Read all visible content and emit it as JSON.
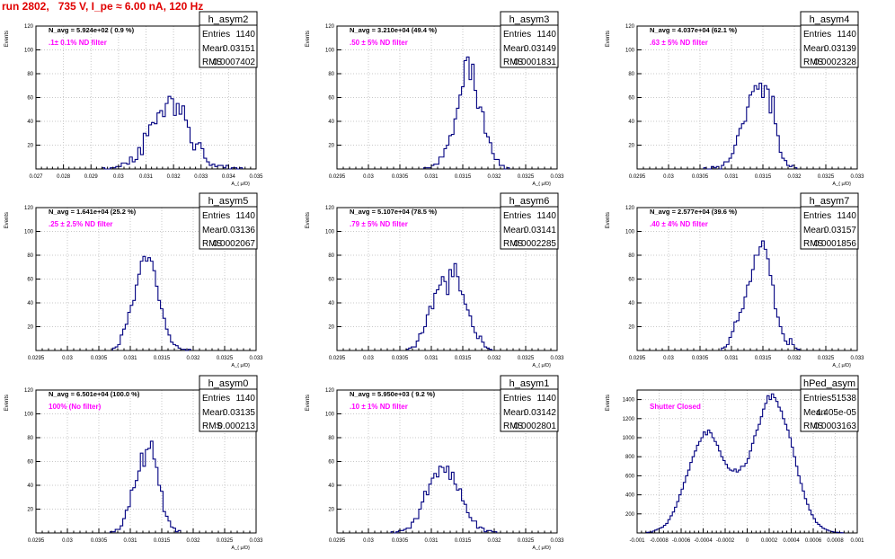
{
  "header": {
    "run_title": "run 2802,   735 V, I_pe ≈ 6.00 nA, 120 Hz"
  },
  "colors": {
    "title": "#e00000",
    "filter_label": "#ff00ff",
    "histogram": "#000080",
    "grid": "#c8c8c8"
  },
  "chart_data": [
    {
      "type": "bar",
      "name": "h_asym2",
      "stats": {
        "entries_label": "Entries",
        "entries": "1140",
        "mean_label": "Mean",
        "mean": "0.03151",
        "rms_label": "RMS",
        "rms": "0.0007402"
      },
      "navg": "N_avg = 5.924e+02 ( 0.9 %)",
      "filter": ".1± 0.1% ND filter",
      "ylabel": "Events",
      "xlabel": "A_{ μ/D}",
      "xlim": [
        0.027,
        0.035
      ],
      "ylim": [
        0,
        120
      ],
      "grid": true,
      "xticks": [
        0.027,
        0.028,
        0.029,
        0.03,
        0.031,
        0.032,
        0.033,
        0.034,
        0.035
      ],
      "xtick_labels": [
        "0.027",
        "0.028",
        "0.029",
        "0.03",
        "0.031",
        "0.032",
        "0.033",
        "0.034",
        "0.035"
      ],
      "yticks": [
        20,
        40,
        60,
        80,
        100,
        120
      ],
      "ytick_labels": [
        "20",
        "40",
        "60",
        "80",
        "100",
        "120"
      ],
      "bin_low": 0.0294,
      "bin_width": 0.0001,
      "values": [
        1,
        0,
        0,
        1,
        1,
        2,
        2,
        5,
        5,
        4,
        10,
        6,
        8,
        18,
        12,
        30,
        28,
        37,
        39,
        38,
        47,
        49,
        44,
        55,
        61,
        59,
        45,
        55,
        46,
        53,
        41,
        35,
        22,
        16,
        21,
        22,
        17,
        9,
        6,
        3,
        4,
        2,
        3,
        3,
        1,
        3,
        0,
        1,
        1,
        0,
        1
      ]
    },
    {
      "type": "bar",
      "name": "h_asym3",
      "stats": {
        "entries_label": "Entries",
        "entries": "1140",
        "mean_label": "Mean",
        "mean": "0.03149",
        "rms_label": "RMS",
        "rms": "0.0001831"
      },
      "navg": "N_avg = 3.210e+04 (49.4 %)",
      "filter": ".50 ± 5% ND filter",
      "ylabel": "Events",
      "xlabel": "A_{ μ/D}",
      "xlim": [
        0.0295,
        0.033
      ],
      "ylim": [
        0,
        120
      ],
      "grid": true,
      "xticks": [
        0.0295,
        0.03,
        0.0305,
        0.031,
        0.0315,
        0.032,
        0.0325,
        0.033
      ],
      "xtick_labels": [
        "0.0295",
        "0.03",
        "0.0305",
        "0.031",
        "0.0315",
        "0.032",
        "0.0325",
        "0.033"
      ],
      "yticks": [
        20,
        40,
        60,
        80,
        100,
        120
      ],
      "ytick_labels": [
        "20",
        "40",
        "60",
        "80",
        "100",
        "120"
      ],
      "bin_low": 0.03088,
      "bin_width": 4e-05,
      "values": [
        1,
        1,
        1,
        3,
        4,
        4,
        10,
        10,
        17,
        20,
        28,
        29,
        42,
        51,
        62,
        69,
        91,
        94,
        75,
        88,
        66,
        51,
        52,
        48,
        30,
        27,
        22,
        13,
        8,
        8,
        3,
        3,
        0,
        1
      ]
    },
    {
      "type": "bar",
      "name": "h_asym4",
      "stats": {
        "entries_label": "Entries",
        "entries": "1140",
        "mean_label": "Mean",
        "mean": "0.03139",
        "rms_label": "RMS",
        "rms": "0.0002328"
      },
      "navg": "N_avg = 4.037e+04 (62.1 %)",
      "filter": ".63 ± 5% ND filter",
      "ylabel": "Events",
      "xlabel": "A_{ μ/D}",
      "xlim": [
        0.0295,
        0.033
      ],
      "ylim": [
        0,
        120
      ],
      "grid": true,
      "xticks": [
        0.0295,
        0.03,
        0.0305,
        0.031,
        0.0315,
        0.032,
        0.0325,
        0.033
      ],
      "xtick_labels": [
        "0.0295",
        "0.03",
        "0.0305",
        "0.031",
        "0.0315",
        "0.032",
        "0.0325",
        "0.033"
      ],
      "yticks": [
        20,
        40,
        60,
        80,
        100,
        120
      ],
      "ytick_labels": [
        "20",
        "40",
        "60",
        "80",
        "100",
        "120"
      ],
      "bin_low": 0.03056,
      "bin_width": 4e-05,
      "values": [
        1,
        0,
        0,
        2,
        1,
        2,
        0,
        3,
        6,
        6,
        9,
        13,
        20,
        28,
        34,
        38,
        40,
        52,
        62,
        65,
        70,
        67,
        72,
        60,
        70,
        67,
        47,
        61,
        38,
        28,
        14,
        9,
        7,
        3,
        2,
        3,
        1
      ]
    },
    {
      "type": "bar",
      "name": "h_asym5",
      "stats": {
        "entries_label": "Entries",
        "entries": "1140",
        "mean_label": "Mean",
        "mean": "0.03136",
        "rms_label": "RMS",
        "rms": "0.0002067"
      },
      "navg": "N_avg = 1.641e+04 (25.2 %)",
      "filter": ".25 ± 2.5% ND filter",
      "ylabel": "Events",
      "xlabel": "A_{ μ/D}",
      "xlim": [
        0.0295,
        0.033
      ],
      "ylim": [
        0,
        120
      ],
      "grid": true,
      "xticks": [
        0.0295,
        0.03,
        0.0305,
        0.031,
        0.0315,
        0.032,
        0.0325,
        0.033
      ],
      "xtick_labels": [
        "0.0295",
        "0.03",
        "0.0305",
        "0.031",
        "0.0315",
        "0.032",
        "0.0325",
        "0.033"
      ],
      "yticks": [
        20,
        40,
        60,
        80,
        100,
        120
      ],
      "ytick_labels": [
        "20",
        "40",
        "60",
        "80",
        "100",
        "120"
      ],
      "bin_low": 0.03072,
      "bin_width": 4e-05,
      "values": [
        2,
        3,
        5,
        13,
        18,
        22,
        32,
        38,
        42,
        55,
        64,
        75,
        79,
        75,
        78,
        75,
        67,
        54,
        42,
        35,
        27,
        18,
        13,
        7,
        5,
        4,
        2,
        1,
        1,
        0,
        1
      ]
    },
    {
      "type": "bar",
      "name": "h_asym6",
      "stats": {
        "entries_label": "Entries",
        "entries": "1140",
        "mean_label": "Mean",
        "mean": "0.03141",
        "rms_label": "RMS",
        "rms": "0.0002285"
      },
      "navg": "N_avg = 5.107e+04 (78.5 %)",
      "filter": ".79 ± 5% ND filter",
      "ylabel": "Events",
      "xlabel": "A_{ μ/D}",
      "xlim": [
        0.0295,
        0.033
      ],
      "ylim": [
        0,
        120
      ],
      "grid": true,
      "xticks": [
        0.0295,
        0.03,
        0.0305,
        0.031,
        0.0315,
        0.032,
        0.0325,
        0.033
      ],
      "xtick_labels": [
        "0.0295",
        "0.03",
        "0.0305",
        "0.031",
        "0.0315",
        "0.032",
        "0.0325",
        "0.033"
      ],
      "yticks": [
        20,
        40,
        60,
        80,
        100,
        120
      ],
      "ytick_labels": [
        "20",
        "40",
        "60",
        "80",
        "100",
        "120"
      ],
      "bin_low": 0.0306,
      "bin_width": 4e-05,
      "values": [
        1,
        2,
        3,
        3,
        8,
        14,
        15,
        20,
        30,
        37,
        35,
        48,
        51,
        55,
        62,
        58,
        47,
        68,
        62,
        73,
        62,
        50,
        47,
        39,
        34,
        29,
        20,
        15,
        10,
        12,
        7,
        3,
        2,
        1
      ]
    },
    {
      "type": "bar",
      "name": "h_asym7",
      "stats": {
        "entries_label": "Entries",
        "entries": "1140",
        "mean_label": "Mean",
        "mean": "0.03157",
        "rms_label": "RMS",
        "rms": "0.0001856"
      },
      "navg": "N_avg = 2.577e+04 (39.6 %)",
      "filter": ".40 ± 4% ND filter",
      "ylabel": "Events",
      "xlabel": "A_{ μ/D}",
      "xlim": [
        0.0295,
        0.033
      ],
      "ylim": [
        0,
        120
      ],
      "grid": true,
      "xticks": [
        0.0295,
        0.03,
        0.0305,
        0.031,
        0.0315,
        0.032,
        0.0325,
        0.033
      ],
      "xtick_labels": [
        "0.0295",
        "0.03",
        "0.0305",
        "0.031",
        "0.0315",
        "0.032",
        "0.0325",
        "0.033"
      ],
      "yticks": [
        20,
        40,
        60,
        80,
        100,
        120
      ],
      "ytick_labels": [
        "20",
        "40",
        "60",
        "80",
        "100",
        "120"
      ],
      "bin_low": 0.03084,
      "bin_width": 4e-05,
      "values": [
        2,
        3,
        5,
        11,
        16,
        24,
        25,
        32,
        35,
        45,
        55,
        58,
        68,
        80,
        80,
        87,
        92,
        85,
        77,
        63,
        55,
        35,
        28,
        20,
        14,
        8,
        5,
        10,
        5,
        2,
        1
      ]
    },
    {
      "type": "bar",
      "name": "h_asym0",
      "stats": {
        "entries_label": "Entries",
        "entries": "1140",
        "mean_label": "Mean",
        "mean": "0.03135",
        "rms_label": "RMS",
        "rms": "0.000213"
      },
      "navg": "N_avg = 6.501e+04 (100.0 %)",
      "filter": "100% (No filter)",
      "ylabel": "Events",
      "xlabel": "A_{ μ/D}",
      "xlim": [
        0.0295,
        0.033
      ],
      "ylim": [
        0,
        120
      ],
      "grid": true,
      "xticks": [
        0.0295,
        0.03,
        0.0305,
        0.031,
        0.0315,
        0.032,
        0.0325,
        0.033
      ],
      "xtick_labels": [
        "0.0295",
        "0.03",
        "0.0305",
        "0.031",
        "0.0315",
        "0.032",
        "0.0325",
        "0.033"
      ],
      "yticks": [
        20,
        40,
        60,
        80,
        100,
        120
      ],
      "ytick_labels": [
        "20",
        "40",
        "60",
        "80",
        "100",
        "120"
      ],
      "bin_low": 0.03068,
      "bin_width": 4e-05,
      "values": [
        1,
        1,
        3,
        3,
        6,
        12,
        19,
        22,
        36,
        38,
        44,
        52,
        67,
        56,
        70,
        71,
        77,
        62,
        55,
        40,
        35,
        18,
        14,
        10,
        5,
        4,
        1,
        2
      ]
    },
    {
      "type": "bar",
      "name": "h_asym1",
      "stats": {
        "entries_label": "Entries",
        "entries": "1140",
        "mean_label": "Mean",
        "mean": "0.03142",
        "rms_label": "RMS",
        "rms": "0.0002801"
      },
      "navg": "N_avg = 5.950e+03 ( 9.2 %)",
      "filter": ".10 ± 1% ND filter",
      "ylabel": "Events",
      "xlabel": "A_{ μ/D}",
      "xlim": [
        0.0295,
        0.033
      ],
      "ylim": [
        0,
        120
      ],
      "grid": true,
      "xticks": [
        0.0295,
        0.03,
        0.0305,
        0.031,
        0.0315,
        0.032,
        0.0325,
        0.033
      ],
      "xtick_labels": [
        "0.0295",
        "0.03",
        "0.0305",
        "0.031",
        "0.0315",
        "0.032",
        "0.0325",
        "0.033"
      ],
      "yticks": [
        20,
        40,
        60,
        80,
        100,
        120
      ],
      "ytick_labels": [
        "20",
        "40",
        "60",
        "80",
        "100",
        "120"
      ],
      "bin_low": 0.03036,
      "bin_width": 4e-05,
      "values": [
        1,
        0,
        1,
        2,
        2,
        3,
        4,
        4,
        9,
        12,
        12,
        20,
        26,
        35,
        32,
        41,
        46,
        50,
        47,
        56,
        55,
        51,
        56,
        45,
        51,
        41,
        36,
        37,
        27,
        24,
        17,
        13,
        10,
        10,
        4,
        5,
        4,
        1,
        2,
        2,
        1,
        1
      ]
    },
    {
      "type": "bar",
      "name": "hPed_asym",
      "stats": {
        "entries_label": "Entries",
        "entries": "51538",
        "mean_label": "Mean",
        "mean": "4.405e-05",
        "rms_label": "RMS",
        "rms": "0.0003163"
      },
      "navg": "",
      "filter": "Shutter Closed",
      "ylabel": "Events",
      "xlabel": "",
      "xlim": [
        -0.001,
        0.001
      ],
      "ylim": [
        0,
        1500
      ],
      "grid": true,
      "xticks": [
        -0.001,
        -0.0008,
        -0.0006,
        -0.0004,
        -0.0002,
        0,
        0.0002,
        0.0004,
        0.0006,
        0.0008,
        0.001
      ],
      "xtick_labels": [
        "-0.001",
        "-0.0008",
        "-0.0006",
        "-0.0004",
        "-0.0002",
        "0",
        "0.0002",
        "0.0004",
        "0.0006",
        "0.0008",
        "0.001"
      ],
      "yticks": [
        200,
        400,
        600,
        800,
        1000,
        1200,
        1400
      ],
      "ytick_labels": [
        "200",
        "400",
        "600",
        "800",
        "1000",
        "1200",
        "1400"
      ],
      "bin_low": -0.00092,
      "bin_width": 2e-05,
      "values": [
        5,
        8,
        10,
        20,
        30,
        40,
        50,
        60,
        80,
        100,
        140,
        180,
        220,
        270,
        330,
        400,
        460,
        530,
        600,
        660,
        740,
        800,
        860,
        920,
        960,
        1000,
        1060,
        1030,
        1080,
        1050,
        1000,
        960,
        920,
        860,
        800,
        760,
        720,
        680,
        660,
        650,
        670,
        640,
        660,
        700,
        700,
        730,
        780,
        860,
        940,
        1020,
        1080,
        1140,
        1220,
        1300,
        1360,
        1440,
        1400,
        1460,
        1420,
        1380,
        1320,
        1280,
        1200,
        1140,
        1080,
        1000,
        900,
        800,
        700,
        600,
        520,
        440,
        360,
        300,
        240,
        190,
        150,
        110,
        90,
        70,
        50,
        40,
        30,
        20,
        15,
        10,
        8,
        5,
        3,
        2
      ]
    }
  ]
}
